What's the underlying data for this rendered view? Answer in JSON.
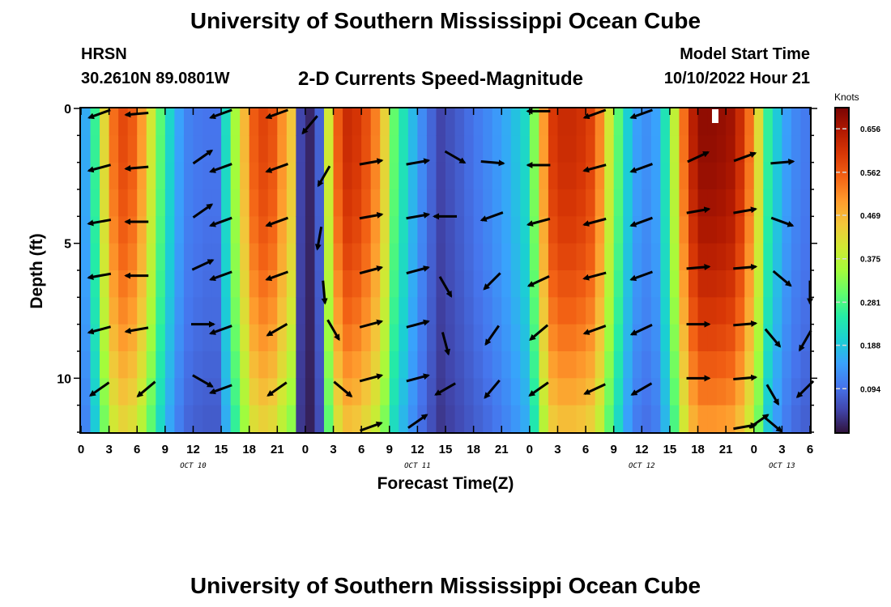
{
  "header": {
    "title": "University of Southern Mississippi Ocean Cube",
    "station": "HRSN",
    "coordinates": "30.2610N  89.0801W",
    "subtitle": "2-D Currents Speed-Magnitude",
    "model_start_label": "Model Start Time",
    "model_start_value": "10/10/2022 Hour 21"
  },
  "footer": {
    "title": "University of Southern Mississippi Ocean Cube"
  },
  "colors": {
    "palette": [
      "#30123b",
      "#4145ab",
      "#4675ed",
      "#39a2fc",
      "#1bcfd4",
      "#24eca6",
      "#61fc6c",
      "#a4fc3b",
      "#d1e834",
      "#f3c63a",
      "#fe9b2d",
      "#f36315",
      "#d93806",
      "#b11901",
      "#7a0403"
    ]
  },
  "chart_data": {
    "type": "heatmap",
    "title": "2-D Currents Speed-Magnitude",
    "xlabel": "Forecast Time(Z)",
    "ylabel": "Depth (ft)",
    "x_ticks": [
      "0",
      "3",
      "6",
      "9",
      "12",
      "15",
      "18",
      "21",
      "0",
      "3",
      "6",
      "9",
      "12",
      "15",
      "18",
      "21",
      "0",
      "3",
      "6",
      "9",
      "12",
      "15",
      "18",
      "21",
      "0",
      "3",
      "6"
    ],
    "x_range_hours": [
      0,
      78
    ],
    "date_labels": [
      {
        "label": "OCT 10",
        "hour": 12
      },
      {
        "label": "OCT 11",
        "hour": 36
      },
      {
        "label": "OCT 12",
        "hour": 60
      },
      {
        "label": "OCT 13",
        "hour": 75
      }
    ],
    "y_ticks": [
      "0",
      "5",
      "10"
    ],
    "y_range_ft": [
      0,
      12
    ],
    "y_inverted": true,
    "colorbar": {
      "label": "Knots",
      "min": 0.0,
      "max": 0.7,
      "tick_values": [
        0.094,
        0.188,
        0.281,
        0.375,
        0.469,
        0.562,
        0.656
      ],
      "tick_labels": [
        "0.094",
        "0.188",
        "0.281",
        "0.375",
        "0.469",
        "0.562",
        "0.656"
      ]
    },
    "speed_profile": {
      "hours": [
        0,
        1,
        2,
        3,
        4.5,
        6,
        7.5,
        9,
        11,
        13,
        14.5,
        15.5,
        17,
        18.5,
        20,
        22.5,
        23.5,
        24.5,
        25.5,
        26.5,
        27.5,
        28.5,
        30,
        32,
        33.5,
        35,
        37,
        38.5,
        40,
        42,
        44,
        46,
        48,
        49,
        50,
        51,
        53,
        55,
        57,
        58.5,
        60,
        62,
        63.5,
        65,
        66.5,
        68,
        70,
        72,
        73.5,
        75,
        76.5,
        78
      ],
      "speed_knots": [
        0.12,
        0.2,
        0.33,
        0.52,
        0.58,
        0.55,
        0.4,
        0.24,
        0.12,
        0.1,
        0.1,
        0.22,
        0.42,
        0.56,
        0.6,
        0.45,
        0.05,
        0.02,
        0.08,
        0.4,
        0.56,
        0.62,
        0.6,
        0.5,
        0.3,
        0.2,
        0.1,
        0.05,
        0.07,
        0.1,
        0.13,
        0.17,
        0.23,
        0.42,
        0.58,
        0.62,
        0.62,
        0.58,
        0.34,
        0.2,
        0.12,
        0.16,
        0.38,
        0.62,
        0.68,
        0.68,
        0.66,
        0.5,
        0.26,
        0.16,
        0.12,
        0.1
      ]
    },
    "vectors": [
      {
        "hour": 2,
        "depth": 0.2,
        "angle_deg": 200
      },
      {
        "hour": 6,
        "depth": 0.2,
        "angle_deg": 185
      },
      {
        "hour": 2,
        "depth": 2.2,
        "angle_deg": 195
      },
      {
        "hour": 6,
        "depth": 2.2,
        "angle_deg": 185
      },
      {
        "hour": 2,
        "depth": 4.2,
        "angle_deg": 190
      },
      {
        "hour": 6,
        "depth": 4.2,
        "angle_deg": 180
      },
      {
        "hour": 2,
        "depth": 6.2,
        "angle_deg": 190
      },
      {
        "hour": 6,
        "depth": 6.2,
        "angle_deg": 180
      },
      {
        "hour": 2,
        "depth": 8.2,
        "angle_deg": 195
      },
      {
        "hour": 6,
        "depth": 8.2,
        "angle_deg": 190
      },
      {
        "hour": 2,
        "depth": 10.4,
        "angle_deg": 215
      },
      {
        "hour": 7,
        "depth": 10.4,
        "angle_deg": 220
      },
      {
        "hour": 15,
        "depth": 0.2,
        "angle_deg": 200
      },
      {
        "hour": 13,
        "depth": 1.8,
        "angle_deg": 35
      },
      {
        "hour": 15,
        "depth": 2.2,
        "angle_deg": 200
      },
      {
        "hour": 13,
        "depth": 3.8,
        "angle_deg": 35
      },
      {
        "hour": 15,
        "depth": 4.2,
        "angle_deg": 200
      },
      {
        "hour": 13,
        "depth": 5.8,
        "angle_deg": 25
      },
      {
        "hour": 15,
        "depth": 6.2,
        "angle_deg": 200
      },
      {
        "hour": 13,
        "depth": 8.0,
        "angle_deg": 0
      },
      {
        "hour": 15,
        "depth": 8.2,
        "angle_deg": 200
      },
      {
        "hour": 13,
        "depth": 10.1,
        "angle_deg": 330
      },
      {
        "hour": 15,
        "depth": 10.4,
        "angle_deg": 200
      },
      {
        "hour": 21,
        "depth": 0.2,
        "angle_deg": 200
      },
      {
        "hour": 21,
        "depth": 2.2,
        "angle_deg": 200
      },
      {
        "hour": 21,
        "depth": 4.2,
        "angle_deg": 200
      },
      {
        "hour": 21,
        "depth": 6.2,
        "angle_deg": 200
      },
      {
        "hour": 21,
        "depth": 8.2,
        "angle_deg": 210
      },
      {
        "hour": 21,
        "depth": 10.4,
        "angle_deg": 215
      },
      {
        "hour": 24.5,
        "depth": 0.6,
        "angle_deg": 230
      },
      {
        "hour": 26,
        "depth": 2.5,
        "angle_deg": 240
      },
      {
        "hour": 25.5,
        "depth": 4.8,
        "angle_deg": 260
      },
      {
        "hour": 26,
        "depth": 6.8,
        "angle_deg": 275
      },
      {
        "hour": 27,
        "depth": 8.2,
        "angle_deg": 300
      },
      {
        "hour": 28,
        "depth": 10.4,
        "angle_deg": 320
      },
      {
        "hour": 31,
        "depth": 2.0,
        "angle_deg": 10
      },
      {
        "hour": 36,
        "depth": 2.0,
        "angle_deg": 10
      },
      {
        "hour": 31,
        "depth": 4.0,
        "angle_deg": 10
      },
      {
        "hour": 36,
        "depth": 4.0,
        "angle_deg": 10
      },
      {
        "hour": 31,
        "depth": 6.0,
        "angle_deg": 15
      },
      {
        "hour": 36,
        "depth": 6.0,
        "angle_deg": 15
      },
      {
        "hour": 31,
        "depth": 8.0,
        "angle_deg": 15
      },
      {
        "hour": 36,
        "depth": 8.0,
        "angle_deg": 15
      },
      {
        "hour": 31,
        "depth": 10.0,
        "angle_deg": 15
      },
      {
        "hour": 36,
        "depth": 10.0,
        "angle_deg": 15
      },
      {
        "hour": 31,
        "depth": 11.8,
        "angle_deg": 20
      },
      {
        "hour": 36,
        "depth": 11.6,
        "angle_deg": 35
      },
      {
        "hour": 40,
        "depth": 1.8,
        "angle_deg": 330
      },
      {
        "hour": 44,
        "depth": 2.0,
        "angle_deg": 355
      },
      {
        "hour": 49,
        "depth": 2.1,
        "angle_deg": 180
      },
      {
        "hour": 39,
        "depth": 4.0,
        "angle_deg": 180
      },
      {
        "hour": 44,
        "depth": 4.0,
        "angle_deg": 200
      },
      {
        "hour": 49,
        "depth": 4.2,
        "angle_deg": 195
      },
      {
        "hour": 39,
        "depth": 6.6,
        "angle_deg": 300
      },
      {
        "hour": 44,
        "depth": 6.4,
        "angle_deg": 225
      },
      {
        "hour": 49,
        "depth": 6.4,
        "angle_deg": 205
      },
      {
        "hour": 39,
        "depth": 8.7,
        "angle_deg": 285
      },
      {
        "hour": 44,
        "depth": 8.4,
        "angle_deg": 235
      },
      {
        "hour": 49,
        "depth": 8.3,
        "angle_deg": 220
      },
      {
        "hour": 39,
        "depth": 10.4,
        "angle_deg": 210
      },
      {
        "hour": 44,
        "depth": 10.4,
        "angle_deg": 230
      },
      {
        "hour": 49,
        "depth": 10.4,
        "angle_deg": 215
      },
      {
        "hour": 49,
        "depth": 0.1,
        "angle_deg": 180
      },
      {
        "hour": 55,
        "depth": 0.2,
        "angle_deg": 200
      },
      {
        "hour": 60,
        "depth": 0.2,
        "angle_deg": 200
      },
      {
        "hour": 55,
        "depth": 2.2,
        "angle_deg": 195
      },
      {
        "hour": 60,
        "depth": 2.2,
        "angle_deg": 200
      },
      {
        "hour": 55,
        "depth": 4.2,
        "angle_deg": 195
      },
      {
        "hour": 60,
        "depth": 4.2,
        "angle_deg": 200
      },
      {
        "hour": 55,
        "depth": 6.2,
        "angle_deg": 195
      },
      {
        "hour": 60,
        "depth": 6.2,
        "angle_deg": 200
      },
      {
        "hour": 55,
        "depth": 8.2,
        "angle_deg": 200
      },
      {
        "hour": 60,
        "depth": 8.2,
        "angle_deg": 205
      },
      {
        "hour": 55,
        "depth": 10.4,
        "angle_deg": 205
      },
      {
        "hour": 60,
        "depth": 10.4,
        "angle_deg": 210
      },
      {
        "hour": 66,
        "depth": 1.8,
        "angle_deg": 25
      },
      {
        "hour": 71,
        "depth": 1.8,
        "angle_deg": 20
      },
      {
        "hour": 66,
        "depth": 3.8,
        "angle_deg": 10
      },
      {
        "hour": 71,
        "depth": 3.8,
        "angle_deg": 10
      },
      {
        "hour": 66,
        "depth": 5.9,
        "angle_deg": 5
      },
      {
        "hour": 71,
        "depth": 5.9,
        "angle_deg": 5
      },
      {
        "hour": 66,
        "depth": 8.0,
        "angle_deg": 0
      },
      {
        "hour": 71,
        "depth": 8.0,
        "angle_deg": 5
      },
      {
        "hour": 66,
        "depth": 10.0,
        "angle_deg": 0
      },
      {
        "hour": 71,
        "depth": 10.0,
        "angle_deg": 5
      },
      {
        "hour": 71,
        "depth": 11.8,
        "angle_deg": 10
      },
      {
        "hour": 75,
        "depth": 2.0,
        "angle_deg": 5
      },
      {
        "hour": 75,
        "depth": 4.2,
        "angle_deg": 340
      },
      {
        "hour": 75,
        "depth": 6.3,
        "angle_deg": 320
      },
      {
        "hour": 78,
        "depth": 6.8,
        "angle_deg": 270
      },
      {
        "hour": 74,
        "depth": 8.5,
        "angle_deg": 310
      },
      {
        "hour": 77.5,
        "depth": 8.6,
        "angle_deg": 240
      },
      {
        "hour": 74,
        "depth": 10.6,
        "angle_deg": 300
      },
      {
        "hour": 77.5,
        "depth": 10.4,
        "angle_deg": 225
      },
      {
        "hour": 72.5,
        "depth": 11.6,
        "angle_deg": 35
      },
      {
        "hour": 74,
        "depth": 11.7,
        "angle_deg": 320
      }
    ]
  }
}
